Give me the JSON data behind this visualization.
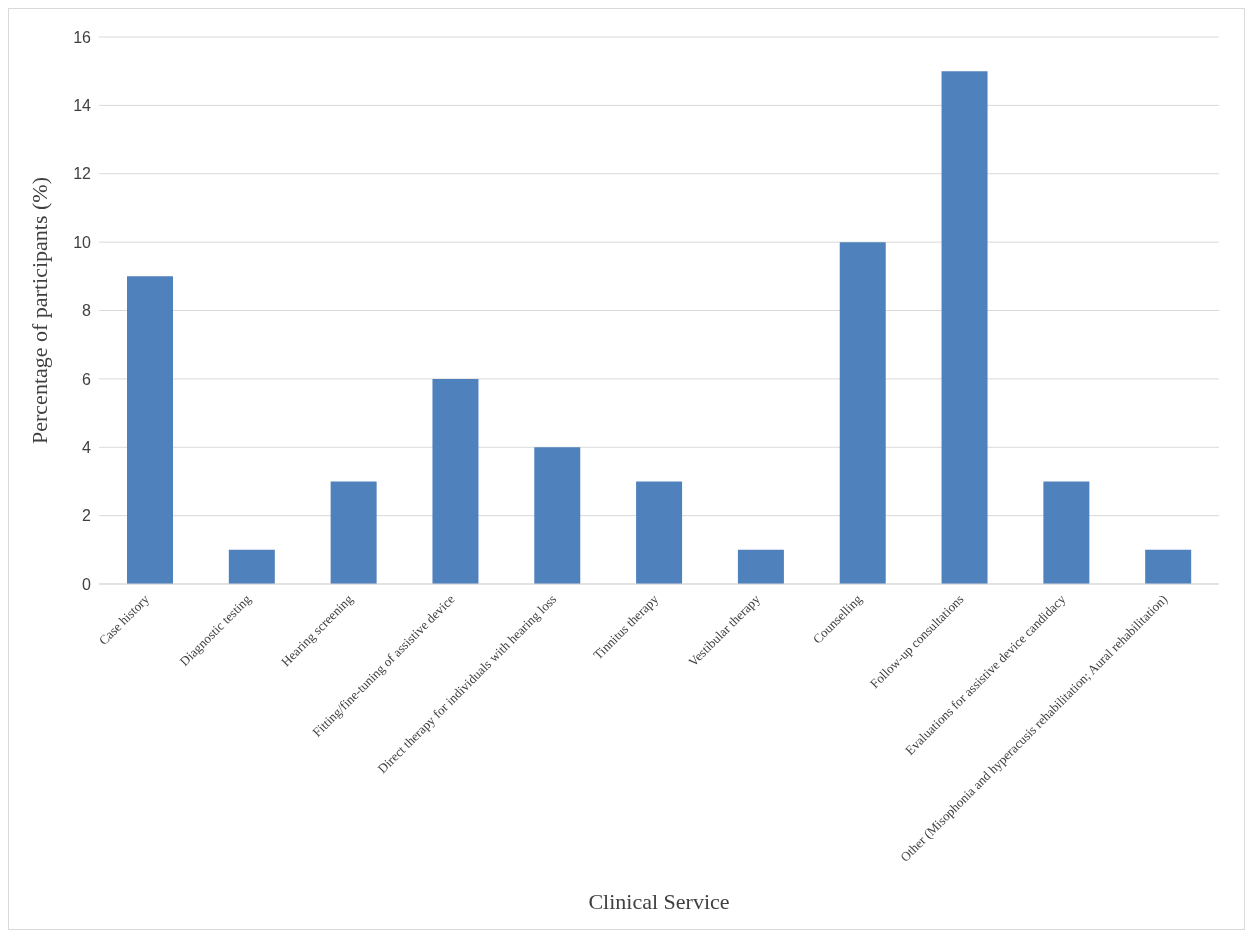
{
  "chart_data": {
    "type": "bar",
    "xlabel": "Clinical Service",
    "ylabel": "Percentage of participants (%)",
    "categories": [
      "Case history",
      "Diagnostic testing",
      "Hearing screening",
      "Fitting/fine-tuning of assistive device",
      "Direct therapy for individuals with hearing loss",
      "Tinnitus therapy",
      "Vestibular therapy",
      "Counselling",
      "Follow-up consultations",
      "Evaluations for assistive device candidacy",
      "Other (Misophonia and hyperacusis rehabilitation; Aural rehabilitation)"
    ],
    "values": [
      9,
      1,
      3,
      6,
      4,
      3,
      1,
      10,
      15,
      3,
      1
    ],
    "color": "#4f81bd",
    "ylim": [
      0,
      16
    ],
    "yticks": [
      0,
      2,
      4,
      6,
      8,
      10,
      12,
      14,
      16
    ],
    "grid": "y",
    "legend": false
  }
}
